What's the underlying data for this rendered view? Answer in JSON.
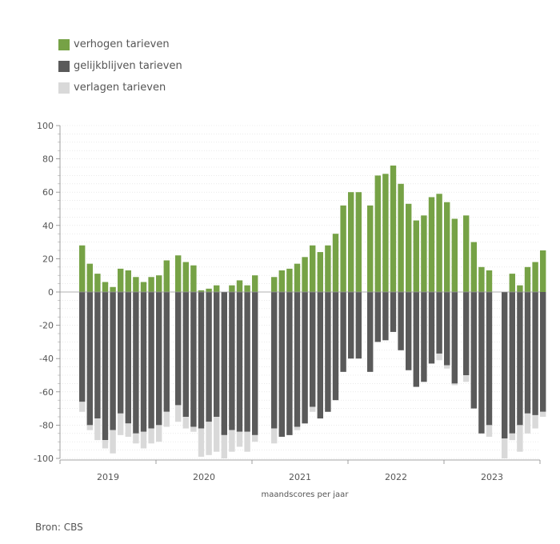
{
  "legend": [
    {
      "label": "verhogen tarieven",
      "color": "#76a246"
    },
    {
      "label": "gelijkblijven tarieven",
      "color": "#5a5a5a"
    },
    {
      "label": "verlagen tarieven",
      "color": "#d9d9d9"
    }
  ],
  "source": "Bron: CBS",
  "chart_data": {
    "type": "bar",
    "stacked": "diverging",
    "xlabel": "maandscores per jaar",
    "ylabel": "",
    "ylim": [
      -100,
      100
    ],
    "yticks": [
      100,
      80,
      60,
      40,
      20,
      0,
      -20,
      -40,
      -60,
      -80,
      -100
    ],
    "grid": true,
    "legend_position": "top-left",
    "years": [
      "2019",
      "2020",
      "2021",
      "2022",
      "2023"
    ],
    "months_per_year": 12,
    "series": [
      {
        "name": "verhogen tarieven",
        "color": "#76a246",
        "values": [
          28,
          17,
          11,
          6,
          3,
          14,
          13,
          9,
          6,
          9,
          10,
          19,
          22,
          18,
          16,
          1,
          2,
          4,
          0,
          4,
          7,
          4,
          10,
          null,
          9,
          13,
          14,
          17,
          21,
          28,
          24,
          28,
          35,
          52,
          60,
          60,
          52,
          70,
          71,
          76,
          65,
          53,
          43,
          46,
          57,
          59,
          54,
          44,
          46,
          30,
          15,
          13,
          null,
          0,
          11,
          4,
          15,
          18,
          25,
          null
        ]
      },
      {
        "name": "gelijkblijven tarieven",
        "color": "#5a5a5a",
        "values": [
          66,
          80,
          76,
          89,
          83,
          73,
          79,
          85,
          84,
          82,
          80,
          72,
          68,
          75,
          81,
          82,
          78,
          75,
          86,
          83,
          84,
          84,
          86,
          null,
          82,
          87,
          86,
          81,
          79,
          69,
          76,
          72,
          65,
          48,
          40,
          40,
          48,
          30,
          29,
          24,
          35,
          47,
          57,
          54,
          43,
          37,
          44,
          55,
          50,
          70,
          85,
          80,
          null,
          88,
          85,
          80,
          73,
          74,
          72,
          null
        ]
      },
      {
        "name": "verlagen tarieven",
        "color": "#d9d9d9",
        "values": [
          6,
          3,
          13,
          5,
          14,
          13,
          8,
          6,
          10,
          9,
          10,
          9,
          10,
          7,
          3,
          17,
          20,
          21,
          14,
          13,
          9,
          12,
          4,
          null,
          9,
          0,
          0,
          2,
          0,
          3,
          0,
          0,
          0,
          0,
          0,
          0,
          0,
          0,
          0,
          0,
          0,
          0,
          0,
          0,
          0,
          4,
          2,
          1,
          4,
          0,
          0,
          7,
          null,
          12,
          4,
          16,
          12,
          8,
          3,
          null
        ]
      }
    ]
  }
}
